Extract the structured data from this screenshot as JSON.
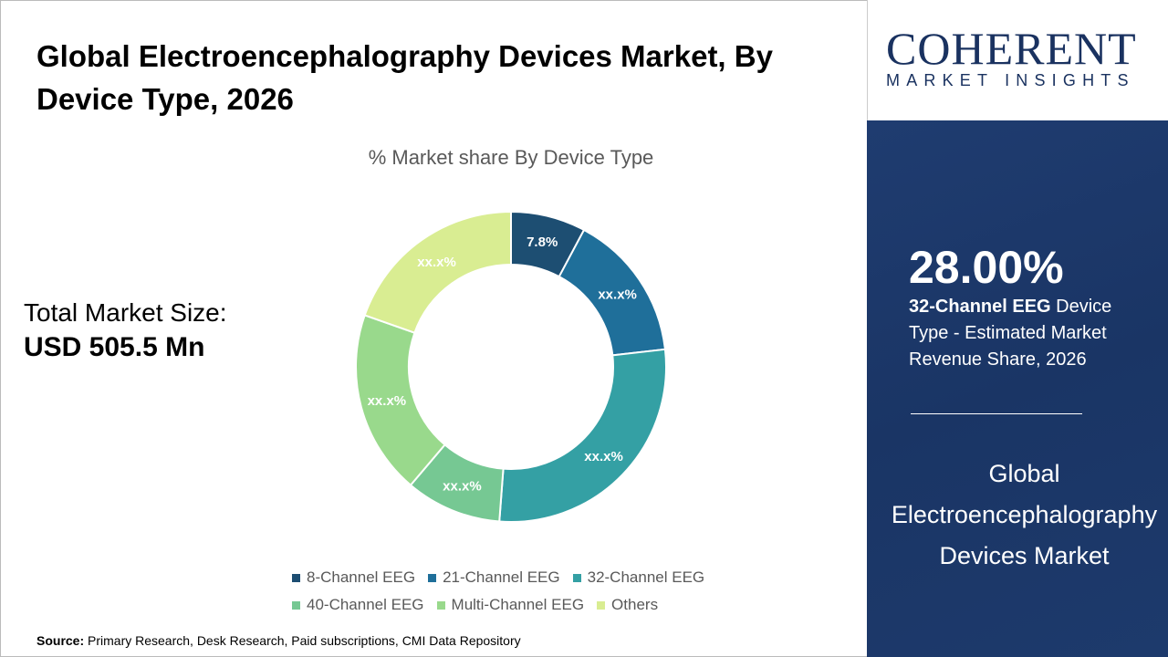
{
  "title": "Global Electroencephalography Devices Market, By Device Type, 2026",
  "total_market": {
    "label": "Total Market Size:",
    "value": "USD 505.5 Mn"
  },
  "source": {
    "label": "Source:",
    "text": "Primary Research, Desk Research, Paid subscriptions, CMI Data Repository"
  },
  "logo": {
    "name": "COHERENT",
    "tagline": "MARKET INSIGHTS"
  },
  "highlight": {
    "value": "28.00%",
    "segment": "32-Channel EEG",
    "description": "Device Type - Estimated Market Revenue Share, 2026",
    "market_name": "Global Electroencephalography Devices Market"
  },
  "chart_data": {
    "type": "pie",
    "donut": true,
    "title": "% Market share By Device Type",
    "legend_position": "bottom",
    "categories": [
      "8-Channel EEG",
      "21-Channel EEG",
      "32-Channel EEG",
      "40-Channel EEG",
      "Multi-Channel EEG",
      "Others"
    ],
    "values": [
      7.8,
      15.4,
      28.0,
      10.0,
      19.2,
      19.6
    ],
    "data_labels": [
      "7.8%",
      "xx.x%",
      "xx.x%",
      "xx.x%",
      "xx.x%",
      "xx.x%"
    ],
    "colors": [
      "#1d4e72",
      "#1f6f9a",
      "#34a0a4",
      "#76c893",
      "#99d98c",
      "#d9ed92"
    ]
  }
}
